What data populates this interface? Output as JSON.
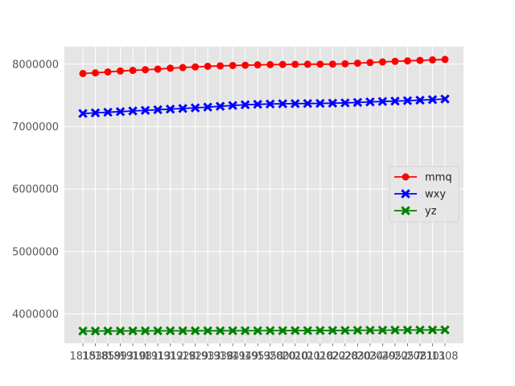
{
  "chart_data": {
    "type": "line",
    "title": "",
    "xlabel": "",
    "ylabel": "",
    "categories": [
      "1815",
      "1838",
      "1859",
      "1893",
      "1910",
      "1981",
      "1913",
      "1912",
      "1928",
      "1929",
      "1933",
      "1938",
      "1941",
      "1949",
      "1953",
      "1958",
      "2000",
      "2010",
      "2011",
      "2018",
      "2022",
      "2028",
      "2030",
      "2034",
      "2049",
      "2052",
      "2057",
      "2081",
      "2101",
      "1308"
    ],
    "ylim": [
      3530000,
      8280000
    ],
    "yticks": [
      4000000,
      5000000,
      6000000,
      7000000,
      8000000
    ],
    "ytick_labels": [
      "4000000",
      "5000000",
      "6000000",
      "7000000",
      "8000000"
    ],
    "grid": true,
    "legend_position": "center-right",
    "series": [
      {
        "name": "mmq",
        "color": "#ff0000",
        "marker": "circle",
        "values": [
          7850000,
          7860000,
          7875000,
          7890000,
          7900000,
          7910000,
          7920000,
          7935000,
          7945000,
          7955000,
          7965000,
          7972000,
          7978000,
          7983000,
          7988000,
          7992000,
          7995000,
          7997000,
          7998000,
          7999000,
          8000000,
          8005000,
          8015000,
          8025000,
          8035000,
          8045000,
          8052000,
          8060000,
          8068000,
          8075000
        ]
      },
      {
        "name": "wxy",
        "color": "#0000ff",
        "marker": "x",
        "values": [
          7210000,
          7220000,
          7230000,
          7240000,
          7250000,
          7260000,
          7270000,
          7280000,
          7290000,
          7300000,
          7312000,
          7325000,
          7338000,
          7350000,
          7357000,
          7362000,
          7366000,
          7368000,
          7370000,
          7372000,
          7375000,
          7380000,
          7387000,
          7395000,
          7402000,
          7408000,
          7415000,
          7423000,
          7432000,
          7442000
        ]
      },
      {
        "name": "yz",
        "color": "#008000",
        "marker": "x",
        "values": [
          3728000,
          3728000,
          3729000,
          3729000,
          3730000,
          3730000,
          3731000,
          3731000,
          3731000,
          3732000,
          3732000,
          3732000,
          3733000,
          3733000,
          3733000,
          3734000,
          3734000,
          3735000,
          3735000,
          3736000,
          3737000,
          3738000,
          3739000,
          3740000,
          3741000,
          3742000,
          3743000,
          3744000,
          3745000,
          3746000
        ]
      }
    ]
  }
}
